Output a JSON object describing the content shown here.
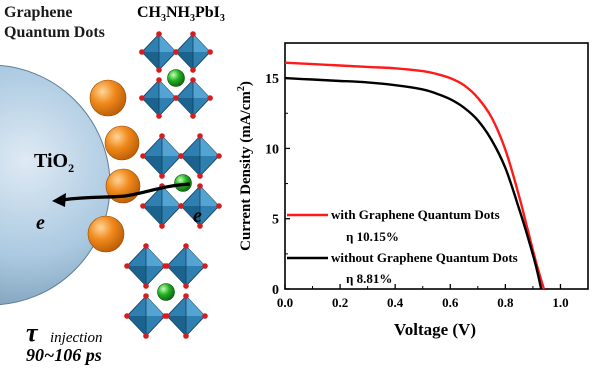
{
  "schematic": {
    "gqd_label_line1": "Graphene",
    "gqd_label_line2": "Quantum Dots",
    "perovskite_label": "CH3NH3PbI3",
    "tio2_label": "TiO2",
    "electron_left": "e",
    "electron_right": "e",
    "tau_symbol": "τ",
    "tau_subscript": "injection",
    "injection_time": "90~106 ps"
  },
  "colors": {
    "tio2_sphere": "#a9c8e0",
    "gqd": "#f08a1c",
    "octahedron": "#2f7fb0",
    "cation": "#22b022",
    "anion": "#d21e1e",
    "series_with": "#ff1a1a",
    "series_without": "#000000"
  },
  "chart_data": {
    "type": "line",
    "title": "",
    "xlabel": "Voltage (V)",
    "ylabel": "Current Density (mA/cm2)",
    "xlim": [
      0,
      1.1
    ],
    "ylim": [
      0,
      17.5
    ],
    "xticks": [
      "0.0",
      "0.2",
      "0.4",
      "0.6",
      "0.8",
      "1.0"
    ],
    "xtick_values": [
      0,
      0.2,
      0.4,
      0.6,
      0.8,
      1.0
    ],
    "yticks": [
      "0",
      "5",
      "10",
      "15"
    ],
    "ytick_values": [
      0,
      5,
      10,
      15
    ],
    "series": [
      {
        "name": "with Graphene Quantum Dots",
        "eta": "η  10.15%",
        "color": "#ff1a1a",
        "x": [
          0,
          0.1,
          0.2,
          0.3,
          0.4,
          0.5,
          0.55,
          0.6,
          0.65,
          0.7,
          0.75,
          0.8,
          0.85,
          0.88,
          0.91,
          0.94
        ],
        "y": [
          16.1,
          16.0,
          15.9,
          15.8,
          15.7,
          15.5,
          15.3,
          15.0,
          14.5,
          13.6,
          12.2,
          9.9,
          6.6,
          4.3,
          2.0,
          0
        ]
      },
      {
        "name": "without Graphene Quantum Dots",
        "eta": "η  8.81%",
        "color": "#000000",
        "x": [
          0,
          0.1,
          0.2,
          0.3,
          0.4,
          0.5,
          0.55,
          0.6,
          0.65,
          0.7,
          0.75,
          0.8,
          0.85,
          0.88,
          0.91,
          0.93
        ],
        "y": [
          15.0,
          14.9,
          14.8,
          14.7,
          14.5,
          14.2,
          13.9,
          13.5,
          12.9,
          12.0,
          10.6,
          8.6,
          5.7,
          3.8,
          1.7,
          0
        ]
      }
    ],
    "legend_position": "bottom-left"
  }
}
